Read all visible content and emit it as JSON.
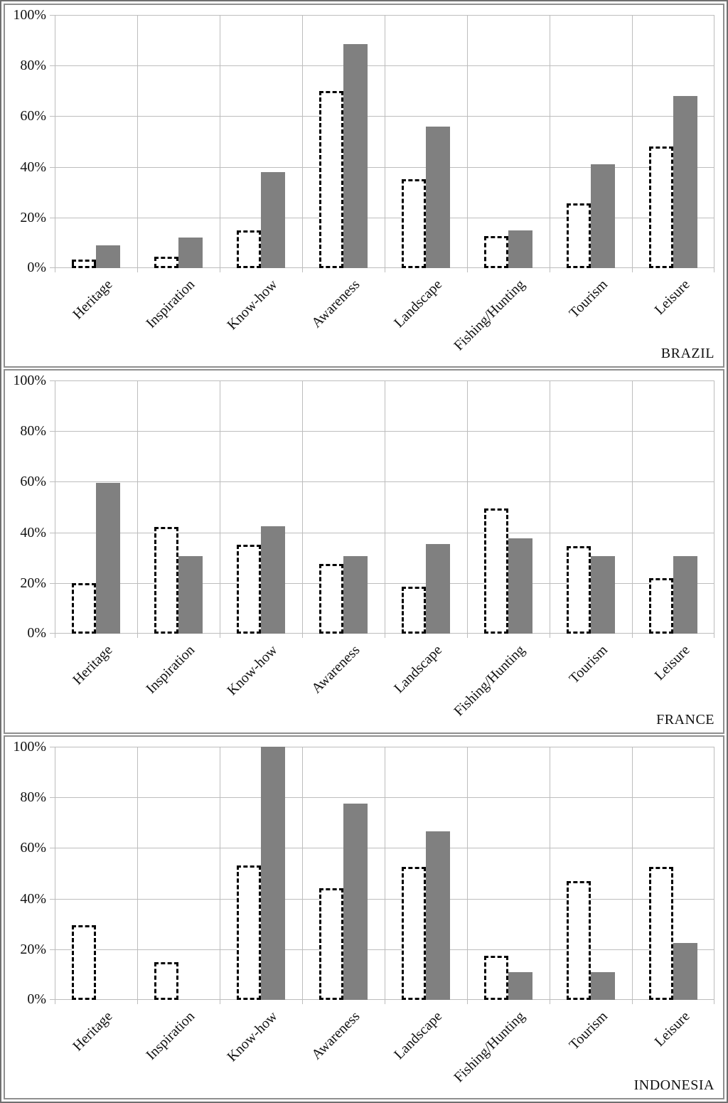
{
  "colors": {
    "solid_bar_fill": "#808080",
    "dashed_bar_border": "#000000",
    "dashed_bar_fill": "#ffffff",
    "gridline": "#bdbdbd",
    "panel_border": "#8f8f8f",
    "outer_border": "#6f6f6f",
    "text": "#111111"
  },
  "chart_data": [
    {
      "type": "bar",
      "panel_label": "BRAZIL",
      "title": "",
      "xlabel": "",
      "ylabel": "",
      "ylim": [
        0,
        100
      ],
      "grid": true,
      "legend_position": "none",
      "yticks": [
        "0%",
        "20%",
        "40%",
        "60%",
        "80%",
        "100%"
      ],
      "categories": [
        "Heritage",
        "Inspiration",
        "Know-how",
        "Awareness",
        "Landscape",
        "Fishing/Hunting",
        "Tourism",
        "Leisure"
      ],
      "series": [
        {
          "name": "dashed-outline",
          "style": "dashed-white",
          "values": [
            3.5,
            4.5,
            15,
            70,
            35,
            12.5,
            25.5,
            48
          ]
        },
        {
          "name": "solid-gray",
          "style": "solid-gray",
          "values": [
            9,
            12,
            38,
            88.5,
            56,
            15,
            41,
            68
          ]
        }
      ]
    },
    {
      "type": "bar",
      "panel_label": "FRANCE",
      "title": "",
      "xlabel": "",
      "ylabel": "",
      "ylim": [
        0,
        100
      ],
      "grid": true,
      "legend_position": "none",
      "yticks": [
        "0%",
        "20%",
        "40%",
        "60%",
        "80%",
        "100%"
      ],
      "categories": [
        "Heritage",
        "Inspiration",
        "Know-how",
        "Awareness",
        "Landscape",
        "Fishing/Hunting",
        "Tourism",
        "Leisure"
      ],
      "series": [
        {
          "name": "dashed-outline",
          "style": "dashed-white",
          "values": [
            20,
            42,
            35,
            27.5,
            18.5,
            49.5,
            34.5,
            22
          ]
        },
        {
          "name": "solid-gray",
          "style": "solid-gray",
          "values": [
            59.5,
            30.5,
            42.5,
            30.5,
            35.5,
            37.5,
            30.5,
            30.5
          ]
        }
      ]
    },
    {
      "type": "bar",
      "panel_label": "INDONESIA",
      "title": "",
      "xlabel": "",
      "ylabel": "",
      "ylim": [
        0,
        100
      ],
      "grid": true,
      "legend_position": "none",
      "yticks": [
        "0%",
        "20%",
        "40%",
        "60%",
        "80%",
        "100%"
      ],
      "categories": [
        "Heritage",
        "Inspiration",
        "Know-how",
        "Awareness",
        "Landscape",
        "Fishing/Hunting",
        "Tourism",
        "Leisure"
      ],
      "series": [
        {
          "name": "dashed-outline",
          "style": "dashed-white",
          "values": [
            29.5,
            15,
            53,
            44,
            52.5,
            17.5,
            47,
            52.5
          ]
        },
        {
          "name": "solid-gray",
          "style": "solid-gray",
          "values": [
            0,
            0,
            100,
            77.5,
            66.5,
            11,
            11,
            22.5
          ]
        }
      ]
    }
  ]
}
